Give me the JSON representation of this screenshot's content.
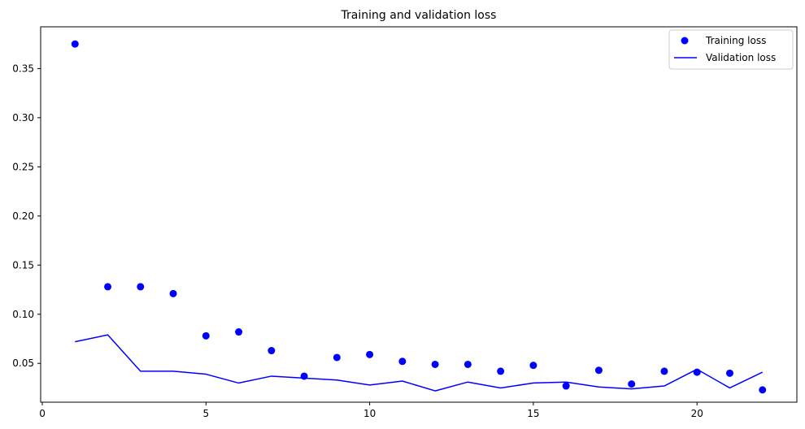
{
  "chart_data": {
    "type": "line",
    "title": "Training and validation loss",
    "xlabel": "",
    "ylabel": "",
    "xlim": [
      -0.05,
      23.05
    ],
    "ylim": [
      0.0105,
      0.3925
    ],
    "xticks": [
      0,
      5,
      10,
      15,
      20
    ],
    "yticks": [
      0.05,
      0.1,
      0.15,
      0.2,
      0.25,
      0.3,
      0.35
    ],
    "ytick_labels": [
      "0.05",
      "0.10",
      "0.15",
      "0.20",
      "0.25",
      "0.30",
      "0.35"
    ],
    "grid": false,
    "legend_position": "top-right",
    "series": [
      {
        "name": "Training loss",
        "style": "points",
        "color": "#0000ff",
        "x": [
          1,
          2,
          3,
          4,
          5,
          6,
          7,
          8,
          9,
          10,
          11,
          12,
          13,
          14,
          15,
          16,
          17,
          18,
          19,
          20,
          21,
          22
        ],
        "y": [
          0.375,
          0.128,
          0.128,
          0.121,
          0.078,
          0.082,
          0.063,
          0.037,
          0.056,
          0.059,
          0.052,
          0.049,
          0.049,
          0.042,
          0.048,
          0.027,
          0.043,
          0.029,
          0.042,
          0.041,
          0.04,
          0.023
        ]
      },
      {
        "name": "Validation loss",
        "style": "line",
        "color": "#0000ff",
        "x": [
          1,
          2,
          3,
          4,
          5,
          6,
          7,
          8,
          9,
          10,
          11,
          12,
          13,
          14,
          15,
          16,
          17,
          18,
          19,
          20,
          21,
          22
        ],
        "y": [
          0.072,
          0.079,
          0.042,
          0.042,
          0.039,
          0.03,
          0.037,
          0.035,
          0.033,
          0.028,
          0.032,
          0.022,
          0.031,
          0.025,
          0.03,
          0.031,
          0.026,
          0.024,
          0.027,
          0.044,
          0.025,
          0.041
        ]
      }
    ]
  }
}
